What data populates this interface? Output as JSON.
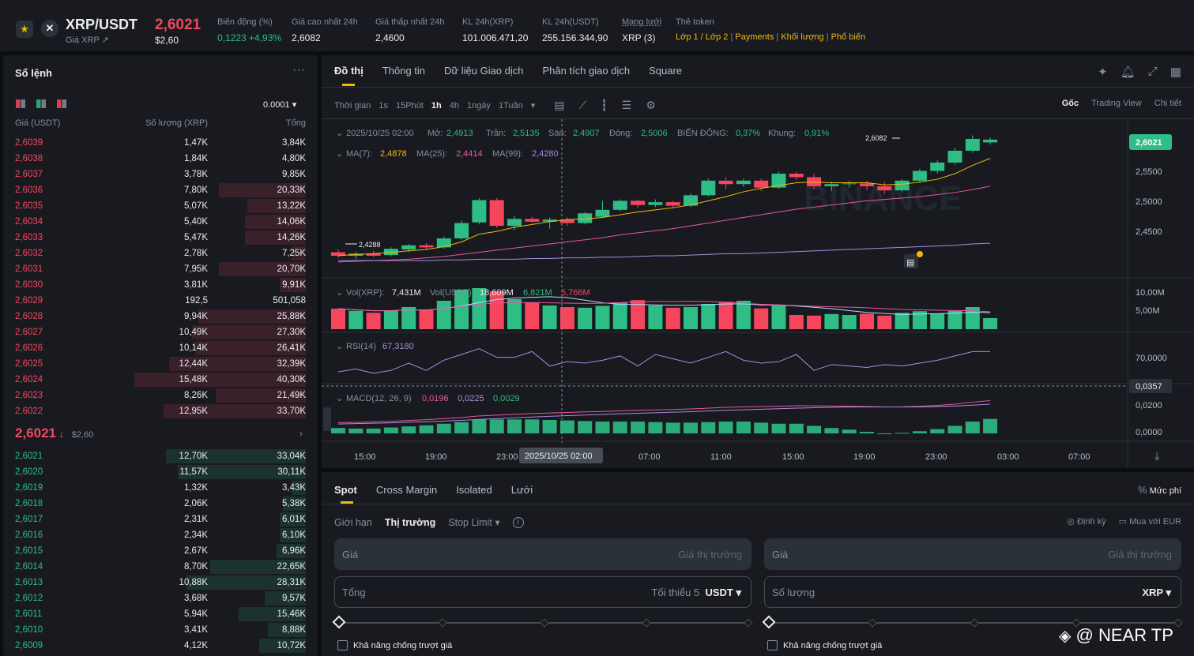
{
  "header": {
    "symbol": "XRP/USDT",
    "subtitle": "Giá XRP ↗",
    "last_price": "2,6021",
    "last_price_usd": "$2,60",
    "stats": [
      {
        "label": "Biến động (%)",
        "value": "0,1223 +4,93%"
      },
      {
        "label": "Giá cao nhất 24h",
        "value": "2,6082"
      },
      {
        "label": "Giá thấp nhất 24h",
        "value": "2,4600"
      },
      {
        "label": "KL 24h(XRP)",
        "value": "101.006.471,20"
      },
      {
        "label": "KL 24h(USDT)",
        "value": "255.156.344,90"
      },
      {
        "label": "Mạng lưới",
        "value": "XRP (3)"
      }
    ],
    "token_label": "Thẻ token",
    "token_tags": [
      "Lớp 1 / Lớp 2",
      "Payments",
      "Khối lượng",
      "Phổ biến"
    ]
  },
  "orderbook": {
    "title": "Sổ lệnh",
    "precision": "0.0001 ▾",
    "col_price": "Giá (USDT)",
    "col_qty": "Số lượng (XRP)",
    "col_total": "Tổng",
    "mid_price": "2,6021",
    "mid_arrow": "↓",
    "mid_usd": "$2,60",
    "asks": [
      {
        "p": "2,6039",
        "q": "1,47K",
        "t": "3,84K",
        "depth": 0
      },
      {
        "p": "2,6038",
        "q": "1,84K",
        "t": "4,80K",
        "depth": 0
      },
      {
        "p": "2,6037",
        "q": "3,78K",
        "t": "9,85K",
        "depth": 0
      },
      {
        "p": "2,6036",
        "q": "7,80K",
        "t": "20,33K",
        "depth": 0.3
      },
      {
        "p": "2,6035",
        "q": "5,07K",
        "t": "13,22K",
        "depth": 0.2
      },
      {
        "p": "2,6034",
        "q": "5,40K",
        "t": "14,06K",
        "depth": 0.21
      },
      {
        "p": "2,6033",
        "q": "5,47K",
        "t": "14,26K",
        "depth": 0.21
      },
      {
        "p": "2,6032",
        "q": "2,78K",
        "t": "7,25K",
        "depth": 0.05
      },
      {
        "p": "2,6031",
        "q": "7,95K",
        "t": "20,70K",
        "depth": 0.3
      },
      {
        "p": "2,6030",
        "q": "3,81K",
        "t": "9,91K",
        "depth": 0.09
      },
      {
        "p": "2,6029",
        "q": "192,5",
        "t": "501,058",
        "depth": 0
      },
      {
        "p": "2,6028",
        "q": "9,94K",
        "t": "25,88K",
        "depth": 0.37
      },
      {
        "p": "2,6027",
        "q": "10,49K",
        "t": "27,30K",
        "depth": 0.39
      },
      {
        "p": "2,6026",
        "q": "10,14K",
        "t": "26,41K",
        "depth": 0.38
      },
      {
        "p": "2,6025",
        "q": "12,44K",
        "t": "32,39K",
        "depth": 0.47
      },
      {
        "p": "2,6024",
        "q": "15,48K",
        "t": "40,30K",
        "depth": 0.59
      },
      {
        "p": "2,6023",
        "q": "8,26K",
        "t": "21,49K",
        "depth": 0.31
      },
      {
        "p": "2,6022",
        "q": "12,95K",
        "t": "33,70K",
        "depth": 0.49
      }
    ],
    "bids": [
      {
        "p": "2,6021",
        "q": "12,70K",
        "t": "33,04K",
        "depth": 0.48
      },
      {
        "p": "2,6020",
        "q": "11,57K",
        "t": "30,11K",
        "depth": 0.44
      },
      {
        "p": "2,6019",
        "q": "1,32K",
        "t": "3,43K",
        "depth": 0.05
      },
      {
        "p": "2,6018",
        "q": "2,06K",
        "t": "5,38K",
        "depth": 0.08
      },
      {
        "p": "2,6017",
        "q": "2,31K",
        "t": "6,01K",
        "depth": 0.09
      },
      {
        "p": "2,6016",
        "q": "2,34K",
        "t": "6,10K",
        "depth": 0.09
      },
      {
        "p": "2,6015",
        "q": "2,67K",
        "t": "6,96K",
        "depth": 0.1
      },
      {
        "p": "2,6014",
        "q": "8,70K",
        "t": "22,65K",
        "depth": 0.33
      },
      {
        "p": "2,6013",
        "q": "10,88K",
        "t": "28,31K",
        "depth": 0.41
      },
      {
        "p": "2,6012",
        "q": "3,68K",
        "t": "9,57K",
        "depth": 0.14
      },
      {
        "p": "2,6011",
        "q": "5,94K",
        "t": "15,46K",
        "depth": 0.23
      },
      {
        "p": "2,6010",
        "q": "3,41K",
        "t": "8,88K",
        "depth": 0.13
      },
      {
        "p": "2,6009",
        "q": "4,12K",
        "t": "10,72K",
        "depth": 0.16
      }
    ]
  },
  "chart_tabs": [
    "Đồ thị",
    "Thông tin",
    "Dữ liệu Giao dịch",
    "Phân tích giao dịch",
    "Square"
  ],
  "timeframes": {
    "label": "Thời gian",
    "items": [
      "1s",
      "15Phút",
      "1h",
      "4h",
      "1ngày",
      "1Tuần"
    ],
    "active": "1h"
  },
  "view_modes": [
    "Gốc",
    "Trading View",
    "Chi tiết"
  ],
  "chart_info": {
    "date": "2025/10/25 02:00",
    "open_label": "Mở:",
    "open": "2,4913",
    "high_label": "Trần:",
    "high": "2,5135",
    "low_label": "Sàn:",
    "low": "2,4907",
    "close_label": "Đóng:",
    "close": "2,5006",
    "change_label": "BIẾN ĐỘNG:",
    "change": "0,37%",
    "range_label": "Khung:",
    "range": "0,91%",
    "ma7_label": "MA(7):",
    "ma7": "2,4878",
    "ma25_label": "MA(25):",
    "ma25": "2,4414",
    "ma99_label": "MA(99):",
    "ma99": "2,4280",
    "vol_label": "Vol(XRP):",
    "vol_xrp": "7,431M",
    "vol_usdt_label": "Vol(USDT)",
    "vol_usdt": "18,609M",
    "vol_ma1": "6,821M",
    "vol_ma2": "5,766M",
    "rsi_label": "RSI(14)",
    "rsi": "67,3180",
    "macd_label": "MACD(12, 26, 9)",
    "macd_dif": "0,0196",
    "macd_dea": "0,0225",
    "macd_hist": "0,0029",
    "high_marker": "2,6082",
    "low_marker": "2,4288",
    "crosshair_time": "2025/10/25 02:00",
    "watermark": "BINANCE"
  },
  "chart_data": {
    "type": "candlestick",
    "price_axis": [
      "2,6021",
      "2,5500",
      "2,5000",
      "2,4500"
    ],
    "volume_axis": [
      "10,00M",
      "5,00M"
    ],
    "rsi_axis": [
      "70,0000"
    ],
    "rsi_cursor_value": "0,0357",
    "macd_axis": [
      "0,0200",
      "0,0000"
    ],
    "time_axis": [
      "15:00",
      "19:00",
      "23:00",
      "07:00",
      "11:00",
      "15:00",
      "19:00",
      "23:00",
      "03:00",
      "07:00"
    ],
    "ylim": [
      2.41,
      2.62
    ],
    "candles": [
      [
        2.44,
        2.444,
        2.432,
        2.435
      ],
      [
        2.435,
        2.441,
        2.43,
        2.438
      ],
      [
        2.438,
        2.442,
        2.433,
        2.435
      ],
      [
        2.436,
        2.447,
        2.434,
        2.445
      ],
      [
        2.444,
        2.452,
        2.44,
        2.45
      ],
      [
        2.45,
        2.453,
        2.443,
        2.447
      ],
      [
        2.447,
        2.463,
        2.445,
        2.46
      ],
      [
        2.46,
        2.486,
        2.458,
        2.482
      ],
      [
        2.483,
        2.518,
        2.48,
        2.515
      ],
      [
        2.515,
        2.518,
        2.475,
        2.478
      ],
      [
        2.478,
        2.492,
        2.472,
        2.488
      ],
      [
        2.488,
        2.491,
        2.482,
        2.484
      ],
      [
        2.484,
        2.49,
        2.474,
        2.487
      ],
      [
        2.487,
        2.49,
        2.478,
        2.482
      ],
      [
        2.482,
        2.498,
        2.48,
        2.496
      ],
      [
        2.491,
        2.514,
        2.49,
        2.501
      ],
      [
        2.501,
        2.516,
        2.499,
        2.514
      ],
      [
        2.514,
        2.516,
        2.504,
        2.508
      ],
      [
        2.508,
        2.516,
        2.505,
        2.512
      ],
      [
        2.512,
        2.514,
        2.504,
        2.507
      ],
      [
        2.507,
        2.525,
        2.505,
        2.522
      ],
      [
        2.522,
        2.546,
        2.52,
        2.543
      ],
      [
        2.543,
        2.548,
        2.531,
        2.538
      ],
      [
        2.538,
        2.546,
        2.534,
        2.543
      ],
      [
        2.543,
        2.546,
        2.528,
        2.533
      ],
      [
        2.533,
        2.556,
        2.531,
        2.553
      ],
      [
        2.553,
        2.556,
        2.544,
        2.548
      ],
      [
        2.548,
        2.553,
        2.531,
        2.535
      ],
      [
        2.535,
        2.541,
        2.528,
        2.538
      ],
      [
        2.538,
        2.543,
        2.533,
        2.539
      ],
      [
        2.539,
        2.543,
        2.53,
        2.535
      ],
      [
        2.535,
        2.541,
        2.524,
        2.529
      ],
      [
        2.529,
        2.545,
        2.526,
        2.543
      ],
      [
        2.543,
        2.56,
        2.54,
        2.557
      ],
      [
        2.557,
        2.572,
        2.553,
        2.569
      ],
      [
        2.569,
        2.59,
        2.566,
        2.586
      ],
      [
        2.586,
        2.608,
        2.583,
        2.603
      ],
      [
        2.598,
        2.605,
        2.595,
        2.602
      ]
    ],
    "ma7": [
      2.435,
      2.437,
      2.438,
      2.44,
      2.442,
      2.444,
      2.448,
      2.455,
      2.466,
      2.47,
      2.476,
      2.48,
      2.484,
      2.487,
      2.488,
      2.49,
      2.494,
      2.498,
      2.501,
      2.504,
      2.508,
      2.514,
      2.52,
      2.527,
      2.532,
      2.536,
      2.54,
      2.541,
      2.54,
      2.54,
      2.54,
      2.537,
      2.538,
      2.541,
      2.545,
      2.553,
      2.565,
      2.575
    ],
    "ma25": [
      2.426,
      2.427,
      2.428,
      2.429,
      2.43,
      2.432,
      2.434,
      2.437,
      2.44,
      2.443,
      2.446,
      2.449,
      2.452,
      2.455,
      2.458,
      2.461,
      2.465,
      2.468,
      2.471,
      2.474,
      2.478,
      2.482,
      2.486,
      2.49,
      2.494,
      2.498,
      2.502,
      2.505,
      2.508,
      2.511,
      2.514,
      2.516,
      2.518,
      2.52,
      2.523,
      2.526,
      2.53,
      2.535
    ],
    "ma99": [
      2.428,
      2.428,
      2.428,
      2.428,
      2.428,
      2.428,
      2.429,
      2.429,
      2.43,
      2.43,
      2.43,
      2.431,
      2.431,
      2.432,
      2.432,
      2.433,
      2.433,
      2.434,
      2.435,
      2.435,
      2.436,
      2.437,
      2.438,
      2.438,
      2.439,
      2.44,
      2.441,
      2.442,
      2.443,
      2.444,
      2.445,
      2.446,
      2.447,
      2.448,
      2.449,
      2.45,
      2.452,
      2.453
    ],
    "volumes": [
      6.5,
      5.8,
      5.2,
      6.0,
      7.0,
      6.1,
      9.0,
      12.5,
      13.0,
      12.0,
      9.5,
      8.5,
      7.5,
      7.0,
      6.8,
      7.4,
      8.5,
      9.2,
      7.5,
      6.8,
      7.0,
      8.0,
      8.7,
      9.0,
      6.6,
      7.5,
      4.5,
      4.3,
      4.8,
      4.5,
      4.9,
      4.3,
      5.2,
      5.7,
      5.0,
      5.8,
      7.0,
      3.5
    ],
    "rsi": [
      56,
      58,
      55,
      57,
      62,
      57,
      64,
      68,
      72,
      66,
      66,
      70,
      60,
      63,
      62,
      64,
      67,
      60,
      68,
      65,
      62,
      66,
      70,
      64,
      62,
      63,
      68,
      57,
      61,
      60,
      59,
      61,
      60,
      62,
      64,
      67,
      70,
      70
    ],
    "macd_dif": [
      0.008,
      0.0082,
      0.0085,
      0.009,
      0.0096,
      0.0102,
      0.011,
      0.0118,
      0.013,
      0.0136,
      0.0142,
      0.0148,
      0.0152,
      0.0156,
      0.016,
      0.0163,
      0.0168,
      0.0172,
      0.0175,
      0.0178,
      0.0182,
      0.0188,
      0.0194,
      0.0198,
      0.02,
      0.0202,
      0.0206,
      0.0205,
      0.0204,
      0.0203,
      0.02,
      0.0197,
      0.0198,
      0.0202,
      0.0208,
      0.0218,
      0.0232,
      0.0245
    ],
    "macd_dea": [
      0.007,
      0.0073,
      0.0076,
      0.0079,
      0.0083,
      0.0087,
      0.0092,
      0.0097,
      0.0104,
      0.011,
      0.0116,
      0.0122,
      0.0127,
      0.0132,
      0.0137,
      0.0141,
      0.0146,
      0.015,
      0.0154,
      0.0158,
      0.0162,
      0.0167,
      0.0172,
      0.0176,
      0.018,
      0.0184,
      0.0188,
      0.0191,
      0.0194,
      0.0196,
      0.0197,
      0.0197,
      0.0197,
      0.0198,
      0.02,
      0.0204,
      0.021,
      0.0218
    ]
  },
  "trade": {
    "tabs": [
      "Spot",
      "Cross Margin",
      "Isolated",
      "Lưới"
    ],
    "fee": "Mức phí",
    "order_types": [
      "Giới hạn",
      "Thị trường",
      "Stop Limit ▾"
    ],
    "active_type": "Thị trường",
    "right_links": [
      "Định kỳ",
      "Mua với EUR"
    ],
    "buy_price_label": "Giá",
    "buy_price_placeholder": "Giá thị trường",
    "sell_price_label": "Giá",
    "sell_price_placeholder": "Giá thị trường",
    "total_label": "Tổng",
    "total_min": "Tối thiểu 5",
    "total_unit": "USDT ▾",
    "qty_label": "Số lượng",
    "qty_unit": "XRP ▾",
    "slippage": "Khả năng chống trượt giá"
  },
  "watermark": "@ NEAR TP"
}
